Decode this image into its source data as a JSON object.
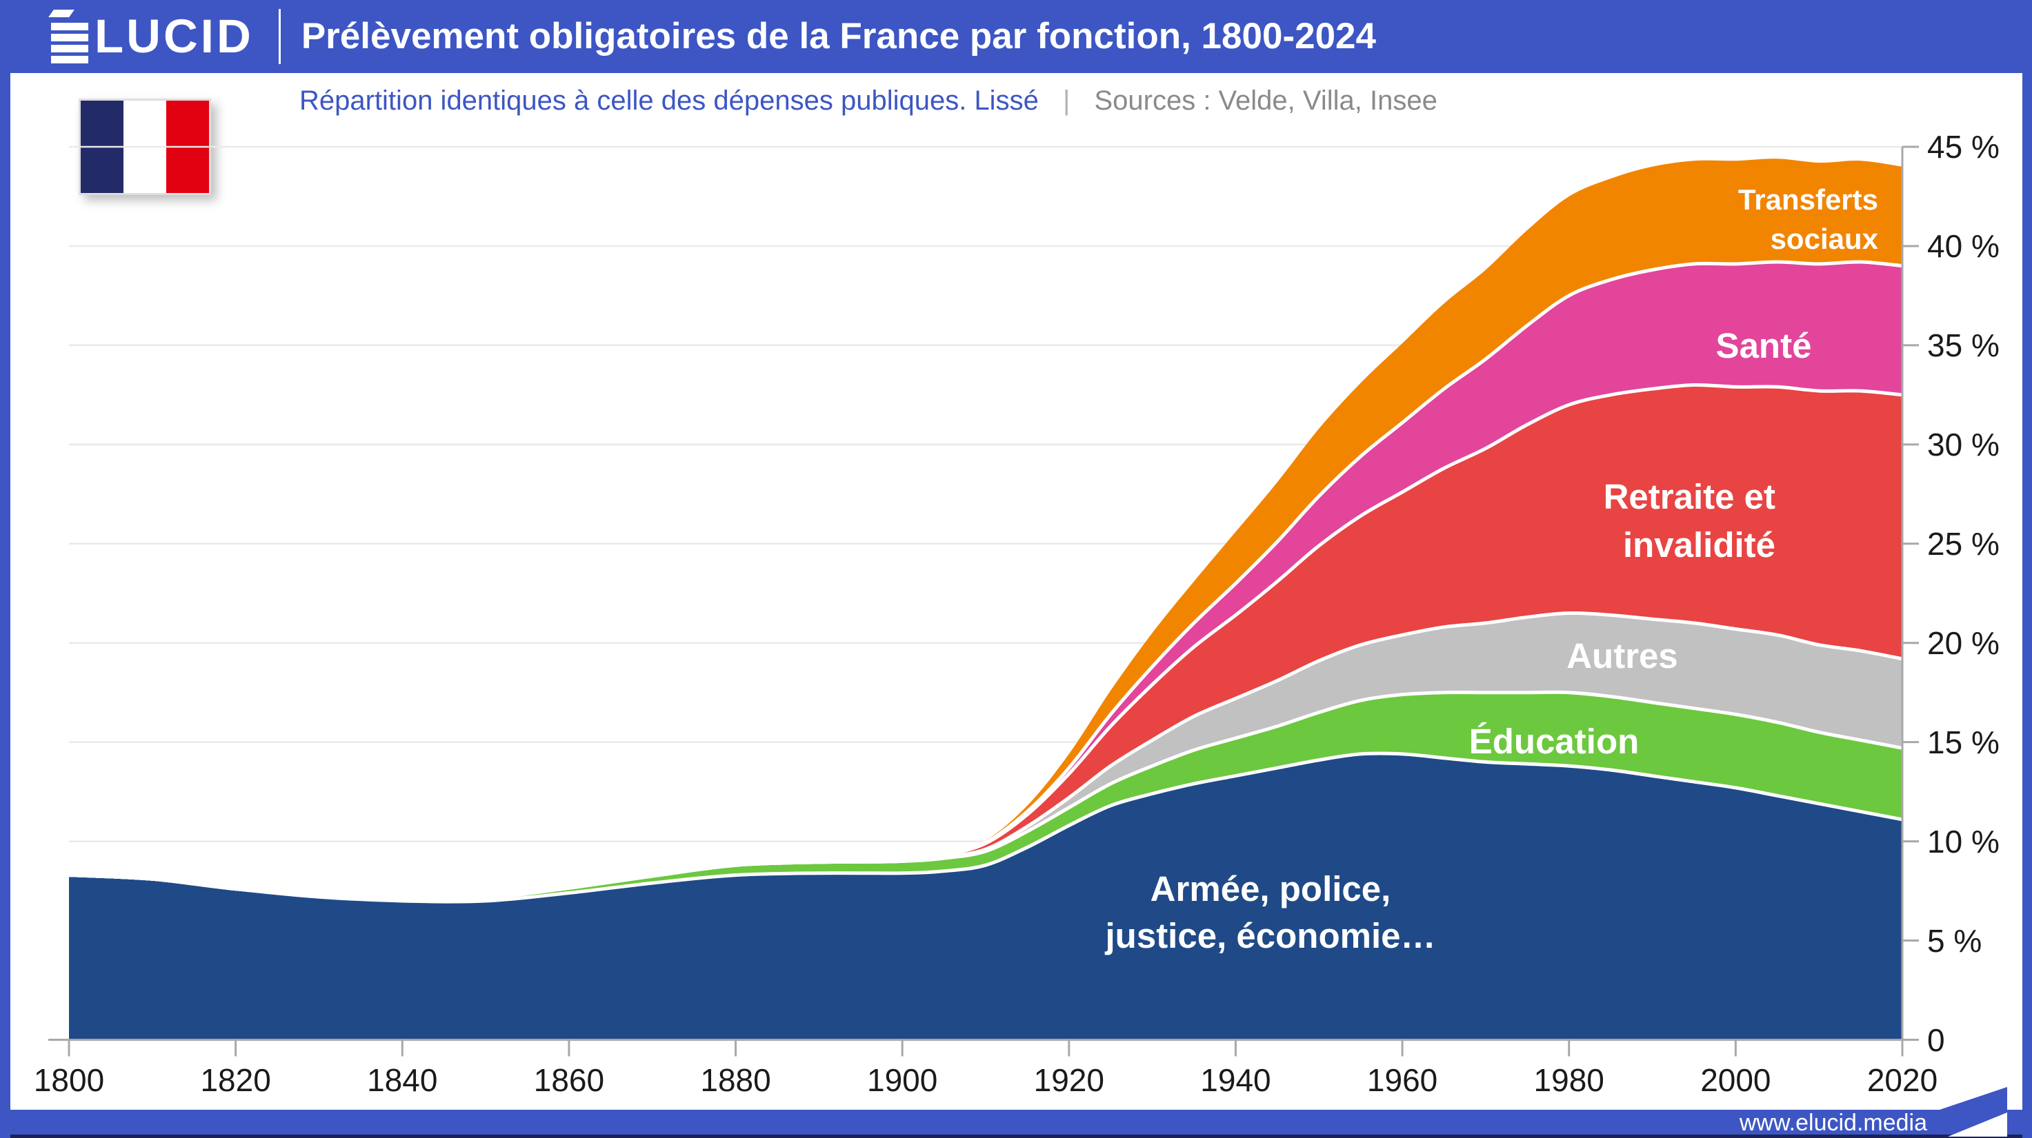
{
  "colors": {
    "brand_blue": "#3D56C4",
    "footer_dark_edge": "#1B2257",
    "axis_line": "#A8A8A8",
    "gridline": "#E9E9E9",
    "tick_label": "#1A1A1A"
  },
  "header": {
    "brand": "ÉLUCID",
    "brand_rest": "LUCID",
    "title": "Prélèvement obligatoires de la France par fonction, 1800-2024"
  },
  "subtitle": {
    "note": "Répartition identiques à celle des dépenses publiques. Lissé",
    "separator": "|",
    "sources": "Sources : Velde, Villa, Insee"
  },
  "flag": {
    "name": "drapeau-france",
    "colors": {
      "blue": "#232A68",
      "white": "#FFFFFF",
      "red": "#E1000F"
    }
  },
  "band_labels": {
    "transferts": [
      "Transferts",
      "sociaux"
    ],
    "sante": "Santé",
    "retraite": [
      "Retraite et",
      "invalidité"
    ],
    "autres": "Autres",
    "education": "Éducation",
    "armee": [
      "Armée, police,",
      "justice, économie…"
    ]
  },
  "footer": {
    "url": "www.elucid.media"
  },
  "chart_data": {
    "type": "area",
    "stacked": true,
    "title": "Prélèvement obligatoires de la France par fonction, 1800-2024",
    "xlabel": "",
    "ylabel": "",
    "unit": "%",
    "xlim": [
      1800,
      2020
    ],
    "ylim": [
      0,
      45
    ],
    "grid": "horizontal",
    "legend_position": "labels-inside-areas",
    "x": [
      1800,
      1810,
      1820,
      1830,
      1840,
      1850,
      1860,
      1870,
      1880,
      1890,
      1900,
      1905,
      1910,
      1915,
      1920,
      1925,
      1930,
      1935,
      1940,
      1945,
      1950,
      1955,
      1960,
      1965,
      1970,
      1975,
      1980,
      1985,
      1990,
      1995,
      2000,
      2005,
      2010,
      2015,
      2020
    ],
    "x_ticks": [
      1800,
      1820,
      1840,
      1860,
      1880,
      1900,
      1920,
      1940,
      1960,
      1980,
      2000,
      2020
    ],
    "y_ticks": [
      {
        "value": 45,
        "label": "45 %"
      },
      {
        "value": 40,
        "label": "40 %"
      },
      {
        "value": 35,
        "label": "35 %"
      },
      {
        "value": 30,
        "label": "30 %"
      },
      {
        "value": 25,
        "label": "25 %"
      },
      {
        "value": 20,
        "label": "20 %"
      },
      {
        "value": 15,
        "label": "15 %"
      },
      {
        "value": 10,
        "label": "10 %"
      },
      {
        "value": 5,
        "label": "5 %"
      },
      {
        "value": 0,
        "label": "0"
      }
    ],
    "series": [
      {
        "name": "Armée, police, justice, économie…",
        "color": "#1F4A87",
        "values": [
          8.3,
          8.1,
          7.6,
          7.2,
          7.0,
          7.0,
          7.4,
          7.9,
          8.3,
          8.4,
          8.4,
          8.5,
          8.8,
          9.7,
          10.8,
          11.8,
          12.4,
          12.9,
          13.3,
          13.7,
          14.1,
          14.4,
          14.4,
          14.2,
          14.0,
          13.9,
          13.8,
          13.6,
          13.3,
          13.0,
          12.7,
          12.3,
          11.9,
          11.5,
          11.1
        ]
      },
      {
        "name": "Éducation",
        "color": "#6CC83F",
        "values": [
          0,
          0,
          0,
          0.05,
          0.1,
          0.15,
          0.25,
          0.35,
          0.5,
          0.55,
          0.6,
          0.65,
          0.7,
          0.8,
          0.9,
          1.1,
          1.4,
          1.7,
          1.9,
          2.1,
          2.4,
          2.7,
          3.0,
          3.3,
          3.5,
          3.6,
          3.7,
          3.7,
          3.7,
          3.7,
          3.7,
          3.7,
          3.6,
          3.6,
          3.6
        ]
      },
      {
        "name": "Autres",
        "color": "#C1C1C1",
        "values": [
          0,
          0,
          0,
          0,
          0,
          0,
          0,
          0,
          0,
          0,
          0,
          0.05,
          0.1,
          0.25,
          0.5,
          0.9,
          1.3,
          1.7,
          2.0,
          2.3,
          2.6,
          2.8,
          3.0,
          3.3,
          3.5,
          3.8,
          4.0,
          4.1,
          4.2,
          4.3,
          4.3,
          4.4,
          4.4,
          4.5,
          4.5
        ]
      },
      {
        "name": "Retraite et invalidité",
        "color": "#E84443",
        "values": [
          0,
          0,
          0,
          0,
          0,
          0,
          0,
          0,
          0,
          0,
          0,
          0.1,
          0.3,
          0.6,
          1.2,
          2.0,
          2.8,
          3.5,
          4.2,
          5.0,
          5.8,
          6.5,
          7.2,
          8.0,
          8.8,
          9.7,
          10.5,
          11.1,
          11.6,
          12.0,
          12.2,
          12.5,
          12.8,
          13.1,
          13.3
        ]
      },
      {
        "name": "Santé",
        "color": "#E2459A",
        "values": [
          0,
          0,
          0,
          0,
          0,
          0,
          0,
          0,
          0,
          0,
          0,
          0,
          0.05,
          0.15,
          0.3,
          0.6,
          0.9,
          1.2,
          1.6,
          2.0,
          2.5,
          3.0,
          3.5,
          4.0,
          4.5,
          5.0,
          5.5,
          5.8,
          6.0,
          6.1,
          6.2,
          6.3,
          6.4,
          6.5,
          6.5
        ]
      },
      {
        "name": "Transferts sociaux",
        "color": "#F28500",
        "values": [
          0,
          0,
          0,
          0,
          0,
          0,
          0,
          0,
          0,
          0,
          0,
          0.05,
          0.1,
          0.3,
          0.7,
          1.2,
          1.7,
          2.1,
          2.6,
          3.0,
          3.4,
          3.7,
          4.0,
          4.3,
          4.5,
          4.8,
          5.0,
          5.1,
          5.2,
          5.2,
          5.2,
          5.2,
          5.1,
          5.1,
          5.0
        ]
      }
    ]
  }
}
